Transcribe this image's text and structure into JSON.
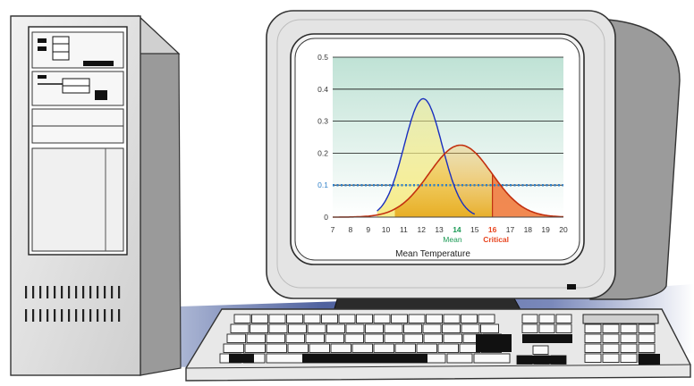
{
  "chart_data": {
    "type": "area",
    "xlabel": "Mean Temperature",
    "ylabel": "",
    "xlim": [
      7,
      20
    ],
    "ylim": [
      0,
      0.5
    ],
    "x_ticks": [
      7,
      8,
      9,
      10,
      11,
      12,
      13,
      14,
      15,
      16,
      17,
      18,
      19,
      20
    ],
    "y_ticks": [
      0,
      0.1,
      0.2,
      0.3,
      0.4,
      0.5
    ],
    "y_tick_labels": [
      "0",
      "0.1",
      "0.2",
      "0.3",
      "0.4",
      "0.5"
    ],
    "reference_line": {
      "y": 0.1,
      "label": "0.1",
      "color": "#2f80c8",
      "style": "dotted"
    },
    "markers": [
      {
        "x": 14,
        "value_label": "14",
        "label": "Mean",
        "color": "#1b9a55"
      },
      {
        "x": 16,
        "value_label": "16",
        "label": "Critical",
        "color": "#e8451f"
      }
    ],
    "series": [
      {
        "distribution": "normal",
        "mean": 12.1,
        "sd": 1.07,
        "peak": 0.37,
        "line_color": "#1a2fbf",
        "fill_color": "#f6eb84"
      },
      {
        "distribution": "normal",
        "mean": 14.2,
        "sd": 1.77,
        "peak": 0.225,
        "line_color": "#c2300f",
        "fill_color": "#f2c157",
        "tail_fill_color": "#ee7432",
        "tail_from_x": 16
      }
    ],
    "grid": true,
    "legend": "none"
  },
  "colors": {
    "plot_top": "#bfe2d5",
    "plot_bottom": "#ffffff",
    "monitor_case": "#e4e4e4",
    "tower": "#e6e6e6",
    "keyboard": "#e8e8e8"
  }
}
